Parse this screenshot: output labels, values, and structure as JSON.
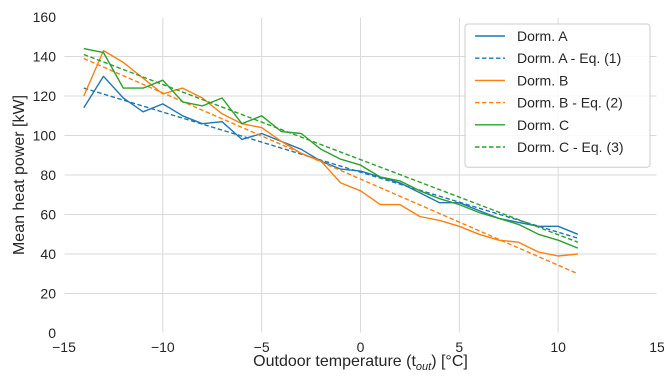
{
  "chart_data": {
    "type": "line",
    "xlabel": "Outdoor temperature (t_out) [°C]",
    "xlabel_parts": {
      "prefix": "Outdoor temperature (t",
      "sub": "out",
      "suffix": ") [°C]"
    },
    "ylabel": "Mean heat power [kW]",
    "xlim": [
      -15,
      15
    ],
    "ylim": [
      0,
      160
    ],
    "xticks": [
      -15,
      -10,
      -5,
      0,
      5,
      10,
      15
    ],
    "yticks": [
      0,
      20,
      40,
      60,
      80,
      100,
      120,
      140,
      160
    ],
    "xtick_labels": [
      "−15",
      "−10",
      "−5",
      "0",
      "5",
      "10",
      "15"
    ],
    "ytick_labels": [
      "0",
      "20",
      "40",
      "60",
      "80",
      "100",
      "120",
      "140",
      "160"
    ],
    "grid": true,
    "legend_position": "top-right",
    "series": [
      {
        "name": "Dorm. A",
        "color": "#1f77b4",
        "style": "solid",
        "x": [
          -14,
          -13,
          -12,
          -11,
          -10,
          -9,
          -8,
          -7,
          -6,
          -5,
          -4,
          -3,
          -2,
          -1,
          0,
          1,
          2,
          3,
          4,
          5,
          6,
          7,
          8,
          9,
          10,
          11
        ],
        "y": [
          114,
          130,
          119,
          112,
          116,
          110,
          106,
          107,
          98,
          101,
          97,
          93,
          87,
          83,
          82,
          79,
          76,
          71,
          66,
          66,
          62,
          58,
          56,
          54,
          54,
          50
        ]
      },
      {
        "name": "Dorm. A - Eq. (1)",
        "color": "#1f77b4",
        "style": "dashed",
        "x": [
          -14,
          11
        ],
        "y": [
          124,
          48
        ]
      },
      {
        "name": "Dorm. B",
        "color": "#ff7f0e",
        "style": "solid",
        "x": [
          -14,
          -13,
          -12,
          -11,
          -10,
          -9,
          -8,
          -7,
          -6,
          -5,
          -4,
          -3,
          -2,
          -1,
          0,
          1,
          2,
          3,
          4,
          5,
          6,
          7,
          8,
          9,
          10,
          11
        ],
        "y": [
          120,
          143,
          137,
          129,
          121,
          124,
          119,
          111,
          106,
          104,
          97,
          91,
          87,
          76,
          72,
          65,
          65,
          59,
          57,
          54,
          50,
          47,
          46,
          41,
          39,
          40
        ]
      },
      {
        "name": "Dorm. B - Eq. (2)",
        "color": "#ff7f0e",
        "style": "dashed",
        "x": [
          -14,
          11
        ],
        "y": [
          139,
          30
        ]
      },
      {
        "name": "Dorm. C",
        "color": "#2ca02c",
        "style": "solid",
        "x": [
          -14,
          -13,
          -12,
          -11,
          -10,
          -9,
          -8,
          -7,
          -6,
          -5,
          -4,
          -3,
          -2,
          -1,
          0,
          1,
          2,
          3,
          4,
          5,
          6,
          7,
          8,
          9,
          10,
          11
        ],
        "y": [
          144,
          142,
          124,
          124,
          128,
          117,
          115,
          119,
          106,
          110,
          102,
          101,
          93,
          88,
          85,
          79,
          77,
          72,
          68,
          65,
          61,
          58,
          55,
          50,
          47,
          43
        ]
      },
      {
        "name": "Dorm. C - Eq. (3)",
        "color": "#2ca02c",
        "style": "dashed",
        "x": [
          -14,
          11
        ],
        "y": [
          141,
          46
        ]
      }
    ]
  }
}
